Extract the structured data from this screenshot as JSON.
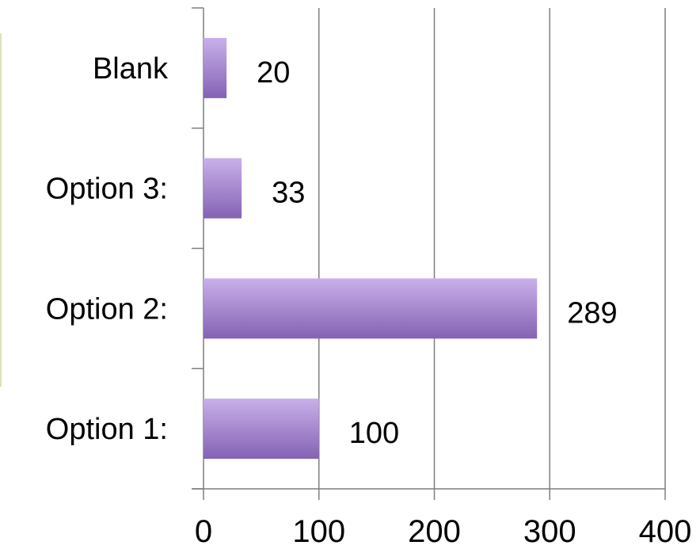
{
  "chart_data": {
    "type": "bar",
    "orientation": "horizontal",
    "categories": [
      "Option 1:",
      "Option 2:",
      "Option 3:",
      "Blank"
    ],
    "values": [
      100,
      289,
      33,
      20
    ],
    "data_labels": [
      "100",
      "289",
      "33",
      "20"
    ],
    "xlim": [
      0,
      400
    ],
    "x_ticks": [
      0,
      100,
      200,
      300,
      400
    ],
    "x_tick_labels": [
      "0",
      "100",
      "200",
      "300",
      "400"
    ],
    "grid": "vertical",
    "legend": "none",
    "bar_color_top": "#c9b0ea",
    "bar_color_bottom": "#8462b4",
    "grid_color": "#7f7f7f"
  }
}
